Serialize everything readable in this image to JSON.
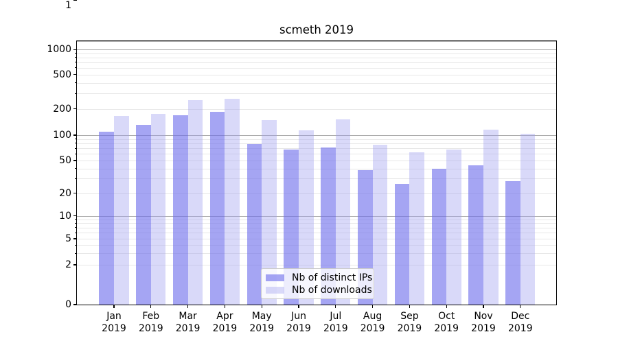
{
  "chart_data": {
    "type": "bar",
    "title": "scmeth 2019",
    "categories": [
      "Jan 2019",
      "Feb 2019",
      "Mar 2019",
      "Apr 2019",
      "May 2019",
      "Jun 2019",
      "Jul 2019",
      "Aug 2019",
      "Sep 2019",
      "Oct 2019",
      "Nov 2019",
      "Dec 2019"
    ],
    "series": [
      {
        "name": "Nb of distinct IPs",
        "color": "rgba(110,110,235,0.62)",
        "values": [
          110,
          130,
          170,
          185,
          78,
          67,
          72,
          38,
          26,
          40,
          44,
          28
        ]
      },
      {
        "name": "Nb of downloads",
        "color": "rgba(160,160,240,0.40)",
        "values": [
          165,
          175,
          250,
          260,
          148,
          113,
          152,
          77,
          63,
          68,
          116,
          103
        ]
      }
    ],
    "yscale": "symlog",
    "yticks": [
      0,
      1,
      2,
      5,
      10,
      20,
      50,
      100,
      200,
      500,
      1000
    ],
    "major_grid_values": [
      1,
      10,
      100,
      1000
    ],
    "ylim": [
      0,
      1270
    ],
    "grid": "both",
    "legend_position": "lower center",
    "colors": {
      "major_grid": "#ababab",
      "minor_grid": "#e7e7e7",
      "axis": "#000000",
      "background": "#ffffff"
    }
  }
}
